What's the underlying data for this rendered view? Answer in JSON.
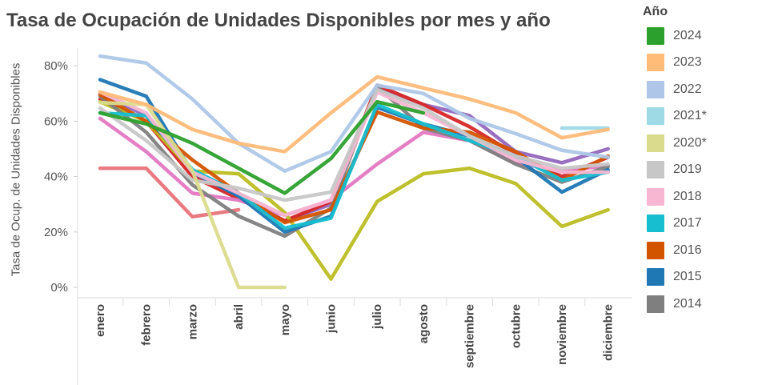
{
  "chart_data": {
    "type": "line",
    "title": "Tasa de Ocupación de Unidades Disponibles por mes y año",
    "xlabel": "",
    "ylabel": "Tasa de Ocup. de Unidades Disponibles",
    "ylim": [
      0,
      85
    ],
    "yticks": [
      0,
      20,
      40,
      60,
      80
    ],
    "ytick_labels": [
      "0%",
      "20%",
      "40%",
      "60%",
      "80%"
    ],
    "categories": [
      "enero",
      "febrero",
      "marzo",
      "abril",
      "mayo",
      "junio",
      "julio",
      "agosto",
      "septiembre",
      "octubre",
      "noviembre",
      "diciembre"
    ],
    "legend_title": "Año",
    "legend_position": "right",
    "series": [
      {
        "name": "",
        "color": "#e8737a",
        "values": [
          43,
          43,
          25.5,
          28,
          null,
          null,
          null,
          null,
          null,
          null,
          null,
          null
        ]
      },
      {
        "name": "",
        "color": "#9467bd",
        "values": [
          70,
          62,
          41,
          33,
          24,
          30,
          72,
          66,
          62,
          49,
          45,
          50
        ]
      },
      {
        "name": "",
        "color": "#d62728",
        "values": [
          68,
          60,
          40,
          32,
          24,
          31,
          73,
          66,
          58,
          48,
          40,
          47
        ]
      },
      {
        "name": "",
        "color": "#e377c2",
        "values": [
          61,
          49,
          34,
          31.5,
          26,
          31.5,
          44.5,
          56,
          53,
          45,
          42,
          44
        ]
      },
      {
        "name": "",
        "color": "#bcbd22",
        "values": [
          67,
          60,
          42,
          41,
          27,
          3,
          31,
          41,
          43,
          37.5,
          22,
          28
        ]
      },
      {
        "name": "2014",
        "color": "#7f7f7f",
        "values": [
          69,
          56,
          37,
          25.7,
          18.5,
          28.6,
          72.5,
          57.5,
          53,
          44.5,
          38,
          43.6
        ]
      },
      {
        "name": "2015",
        "color": "#1f77b4",
        "values": [
          75,
          69,
          41.5,
          33,
          20,
          25.7,
          65,
          59,
          54.6,
          47,
          34.4,
          42.5
        ]
      },
      {
        "name": "2016",
        "color": "#d35400",
        "values": [
          69.6,
          60,
          46,
          34,
          23.4,
          28,
          63.3,
          57.5,
          56,
          49,
          38.7,
          47.4
        ]
      },
      {
        "name": "2017",
        "color": "#17becf",
        "values": [
          63,
          62,
          42.5,
          34,
          21.4,
          25,
          66,
          59,
          53,
          47.4,
          38.7,
          41.6
        ]
      },
      {
        "name": "2018",
        "color": "#f7b6d2",
        "values": [
          70.5,
          63,
          41.6,
          34,
          26,
          31.5,
          70.5,
          63,
          54.6,
          46,
          41.6,
          41.6
        ]
      },
      {
        "name": "2019",
        "color": "#c7c7c7",
        "values": [
          64.7,
          53,
          38.7,
          35.8,
          31.5,
          34.4,
          71.4,
          64.7,
          54.6,
          47.4,
          43,
          44.5
        ]
      },
      {
        "name": "2020*",
        "color": "#dbdb8d",
        "values": [
          66.7,
          66,
          42,
          0,
          0,
          null,
          null,
          null,
          null,
          null,
          null,
          null
        ]
      },
      {
        "name": "2021*",
        "color": "#9edae5",
        "values": [
          null,
          null,
          null,
          null,
          null,
          null,
          null,
          null,
          null,
          null,
          57.5,
          57.5
        ]
      },
      {
        "name": "2022",
        "color": "#aec7e8",
        "values": [
          83.5,
          81,
          68,
          52,
          42,
          49,
          73,
          70,
          61,
          55.5,
          49.5,
          47
        ]
      },
      {
        "name": "2023",
        "color": "#ffbb78",
        "values": [
          70.5,
          66,
          57,
          52,
          49,
          63,
          76,
          72,
          68,
          63,
          54,
          57
        ]
      },
      {
        "name": "2024",
        "color": "#2ca02c",
        "values": [
          63,
          59,
          52,
          43,
          34,
          46.5,
          67,
          63,
          null,
          null,
          null,
          null
        ]
      }
    ],
    "legend_order": [
      "2024",
      "2023",
      "2022",
      "2021*",
      "2020*",
      "2019",
      "2018",
      "2017",
      "2016",
      "2015",
      "2014"
    ]
  }
}
